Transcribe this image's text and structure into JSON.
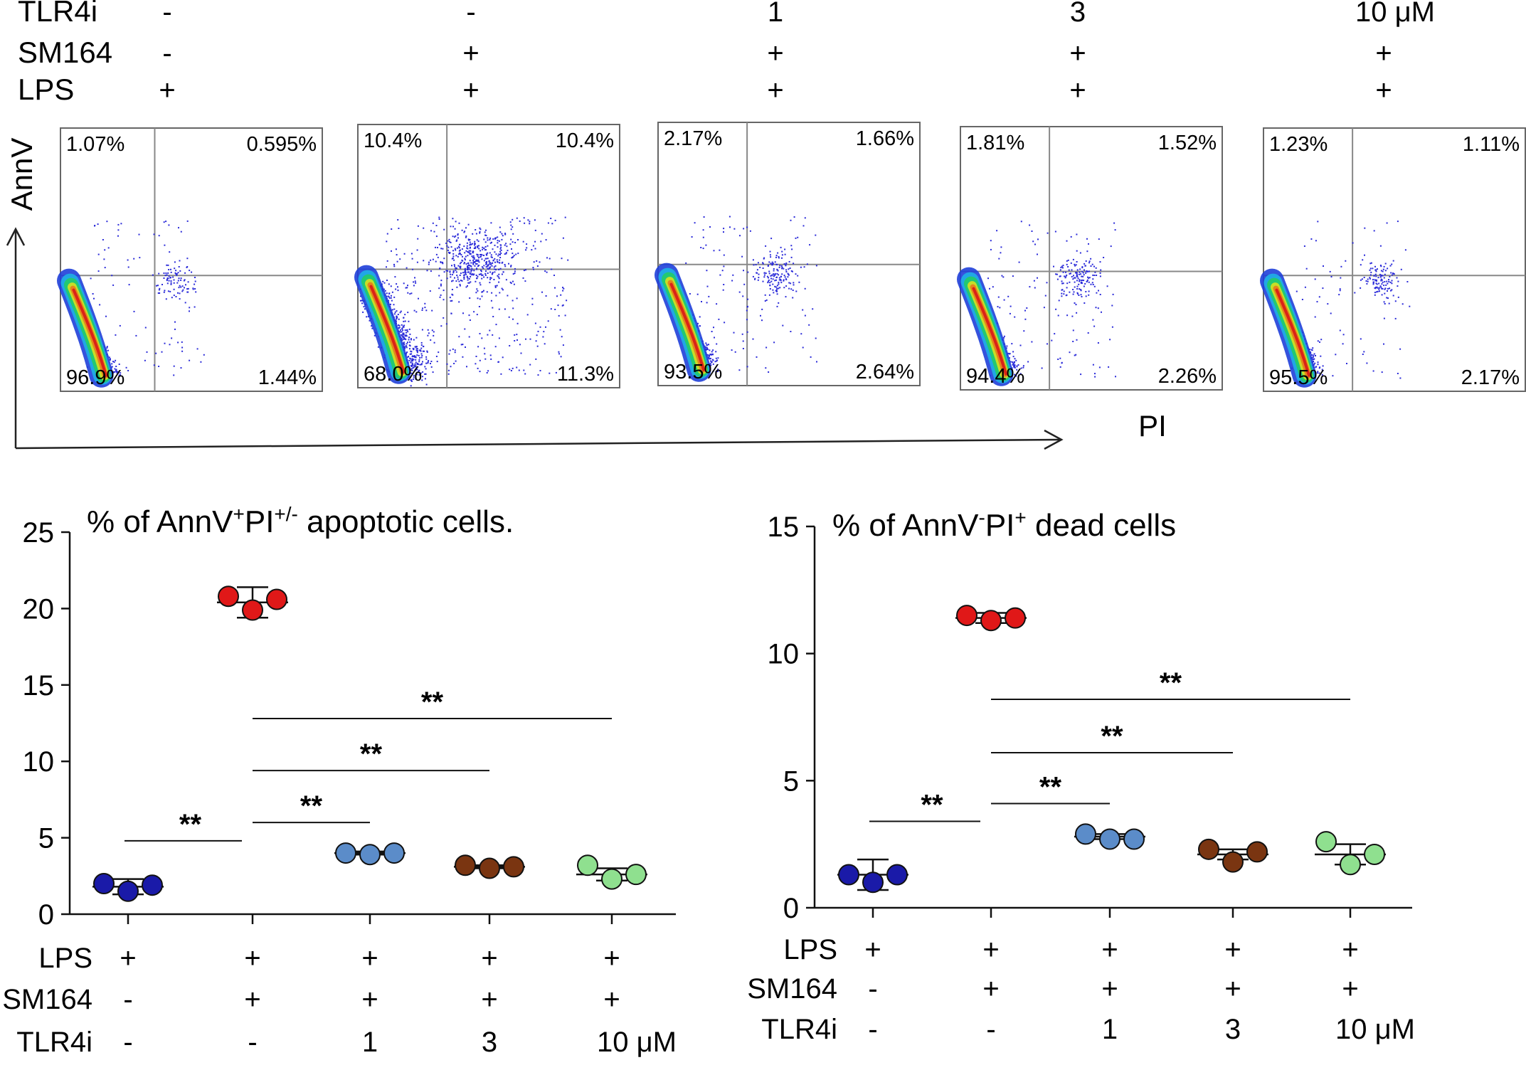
{
  "top_conditions": {
    "rows": [
      {
        "label": "TLR4i",
        "values": [
          "-",
          "-",
          "1",
          "3",
          "10 μM"
        ]
      },
      {
        "label": "SM164",
        "values": [
          "-",
          "+",
          "+",
          "+",
          "+"
        ]
      },
      {
        "label": "LPS",
        "values": [
          "+",
          "+",
          "+",
          "+",
          "+"
        ]
      }
    ]
  },
  "flow": {
    "y_axis_label": "AnnV",
    "x_axis_label": "PI",
    "dot_color": "#2b2bd9",
    "panels": [
      {
        "q": [
          "1.07%",
          "0.595%",
          "96.9%",
          "1.44%"
        ]
      },
      {
        "q": [
          "10.4%",
          "10.4%",
          "68.0%",
          "11.3%"
        ]
      },
      {
        "q": [
          "2.17%",
          "1.66%",
          "93.5%",
          "2.64%"
        ]
      },
      {
        "q": [
          "1.81%",
          "1.52%",
          "94.4%",
          "2.26%"
        ]
      },
      {
        "q": [
          "1.23%",
          "1.11%",
          "95.5%",
          "2.17%"
        ]
      }
    ]
  },
  "chart_data": [
    {
      "type": "scatter",
      "title_parts": [
        "% of AnnV",
        "+",
        "PI",
        "+/-",
        " apoptotic cells."
      ],
      "ylim": [
        0,
        25
      ],
      "yticks": [
        0,
        5,
        10,
        15,
        20,
        25
      ],
      "groups": [
        {
          "values": [
            2.0,
            1.5,
            1.9
          ],
          "mean": 1.8,
          "sd": 0.5,
          "color": "#1a1aa8"
        },
        {
          "values": [
            20.8,
            19.9,
            20.6
          ],
          "mean": 20.4,
          "sd": 1.0,
          "color": "#e01818"
        },
        {
          "values": [
            4.0,
            3.9,
            4.0
          ],
          "mean": 4.0,
          "sd": 0.1,
          "color": "#5b8cc9"
        },
        {
          "values": [
            3.2,
            3.0,
            3.1
          ],
          "mean": 3.1,
          "sd": 0.1,
          "color": "#7a3511"
        },
        {
          "values": [
            3.2,
            2.3,
            2.6
          ],
          "mean": 2.6,
          "sd": 0.4,
          "color": "#8fe08f"
        }
      ],
      "significance": [
        {
          "from": 0,
          "to": 1,
          "y": 4.8,
          "label": "**"
        },
        {
          "from": 1,
          "to": 2,
          "y": 6.0,
          "label": "**"
        },
        {
          "from": 1,
          "to": 3,
          "y": 9.4,
          "label": "**"
        },
        {
          "from": 1,
          "to": 4,
          "y": 12.8,
          "label": "**"
        }
      ],
      "conditions": [
        {
          "label": "LPS",
          "values": [
            "+",
            "+",
            "+",
            "+",
            "+"
          ]
        },
        {
          "label": "SM164",
          "values": [
            "-",
            "+",
            "+",
            "+",
            "+"
          ]
        },
        {
          "label": "TLR4i",
          "values": [
            "-",
            "-",
            "1",
            "3",
            "10 μM"
          ]
        }
      ]
    },
    {
      "type": "scatter",
      "title_parts": [
        "% of AnnV",
        "-",
        "PI",
        "+",
        " dead cells"
      ],
      "ylim": [
        0,
        15
      ],
      "yticks": [
        0,
        5,
        10,
        15
      ],
      "groups": [
        {
          "values": [
            1.3,
            1.0,
            1.3
          ],
          "mean": 1.3,
          "sd": 0.6,
          "color": "#1a1aa8"
        },
        {
          "values": [
            11.5,
            11.3,
            11.4
          ],
          "mean": 11.4,
          "sd": 0.2,
          "color": "#e01818"
        },
        {
          "values": [
            2.9,
            2.7,
            2.7
          ],
          "mean": 2.8,
          "sd": 0.1,
          "color": "#5b8cc9"
        },
        {
          "values": [
            2.3,
            1.8,
            2.2
          ],
          "mean": 2.1,
          "sd": 0.2,
          "color": "#7a3511"
        },
        {
          "values": [
            2.6,
            1.7,
            2.1
          ],
          "mean": 2.1,
          "sd": 0.4,
          "color": "#8fe08f"
        }
      ],
      "significance": [
        {
          "from": 0,
          "to": 1,
          "y": 3.4,
          "label": "**"
        },
        {
          "from": 1,
          "to": 2,
          "y": 4.1,
          "label": "**"
        },
        {
          "from": 1,
          "to": 3,
          "y": 6.1,
          "label": "**"
        },
        {
          "from": 1,
          "to": 4,
          "y": 8.2,
          "label": "**"
        }
      ],
      "conditions": [
        {
          "label": "LPS",
          "values": [
            "+",
            "+",
            "+",
            "+",
            "+"
          ]
        },
        {
          "label": "SM164",
          "values": [
            "-",
            "+",
            "+",
            "+",
            "+"
          ]
        },
        {
          "label": "TLR4i",
          "values": [
            "-",
            "-",
            "1",
            "3",
            "10 μM"
          ]
        }
      ]
    }
  ]
}
